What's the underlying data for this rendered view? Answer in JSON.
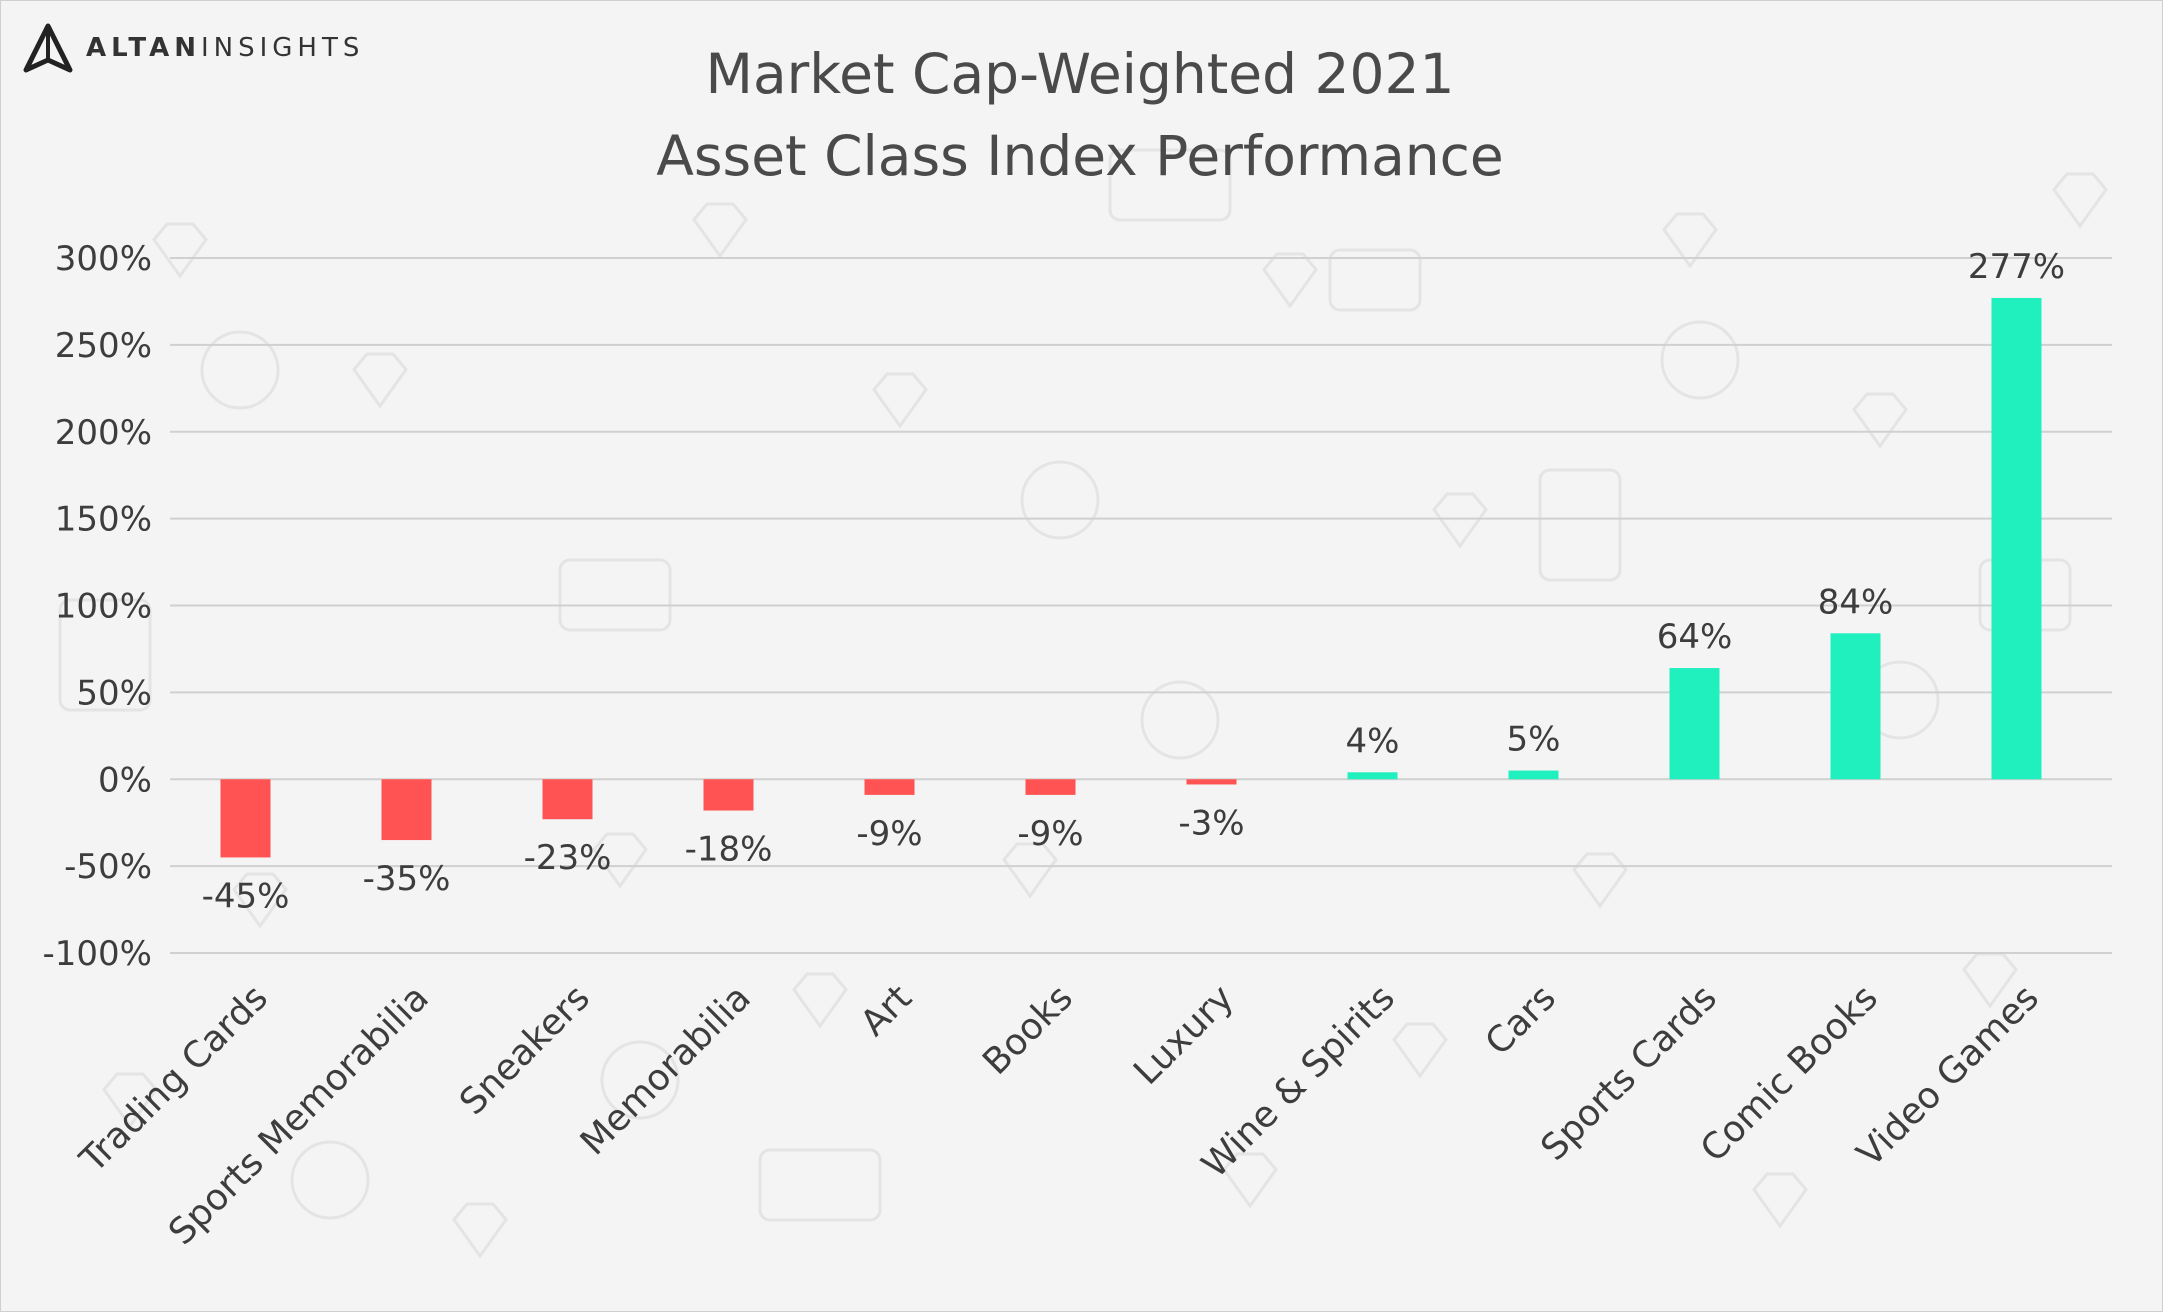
{
  "brand": {
    "name_strong": "ALTAN",
    "name_light": "INSIGHTS",
    "logo_icon": "altan-triangle-logo-icon"
  },
  "chart_data": {
    "type": "bar",
    "title": "Market Cap-Weighted 2021",
    "subtitle": "Asset Class Index Performance",
    "xlabel": "",
    "ylabel": "",
    "categories": [
      "Trading Cards",
      "Sports Memorabilia",
      "Sneakers",
      "Memorabilia",
      "Art",
      "Books",
      "Luxury",
      "Wine & Spirits",
      "Cars",
      "Sports Cards",
      "Comic Books",
      "Video Games"
    ],
    "values": [
      -45,
      -35,
      -23,
      -18,
      -9,
      -9,
      -3,
      4,
      5,
      64,
      84,
      277
    ],
    "data_labels": [
      "-45%",
      "-35%",
      "-23%",
      "-18%",
      "-9%",
      "-9%",
      "-3%",
      "4%",
      "5%",
      "64%",
      "84%",
      "277%"
    ],
    "ylim": [
      -100,
      300
    ],
    "yticks": [
      300,
      250,
      200,
      150,
      100,
      50,
      0,
      -50,
      -100
    ],
    "ytick_labels": [
      "300%",
      "250%",
      "200%",
      "150%",
      "100%",
      "50%",
      "0%",
      "-50%",
      "-100%"
    ],
    "grid": true,
    "legend": "none",
    "colors": {
      "positive": "#20f0be",
      "negative": "#ff5252",
      "grid": "#d0d0d0",
      "text": "#3d3d3d"
    }
  }
}
